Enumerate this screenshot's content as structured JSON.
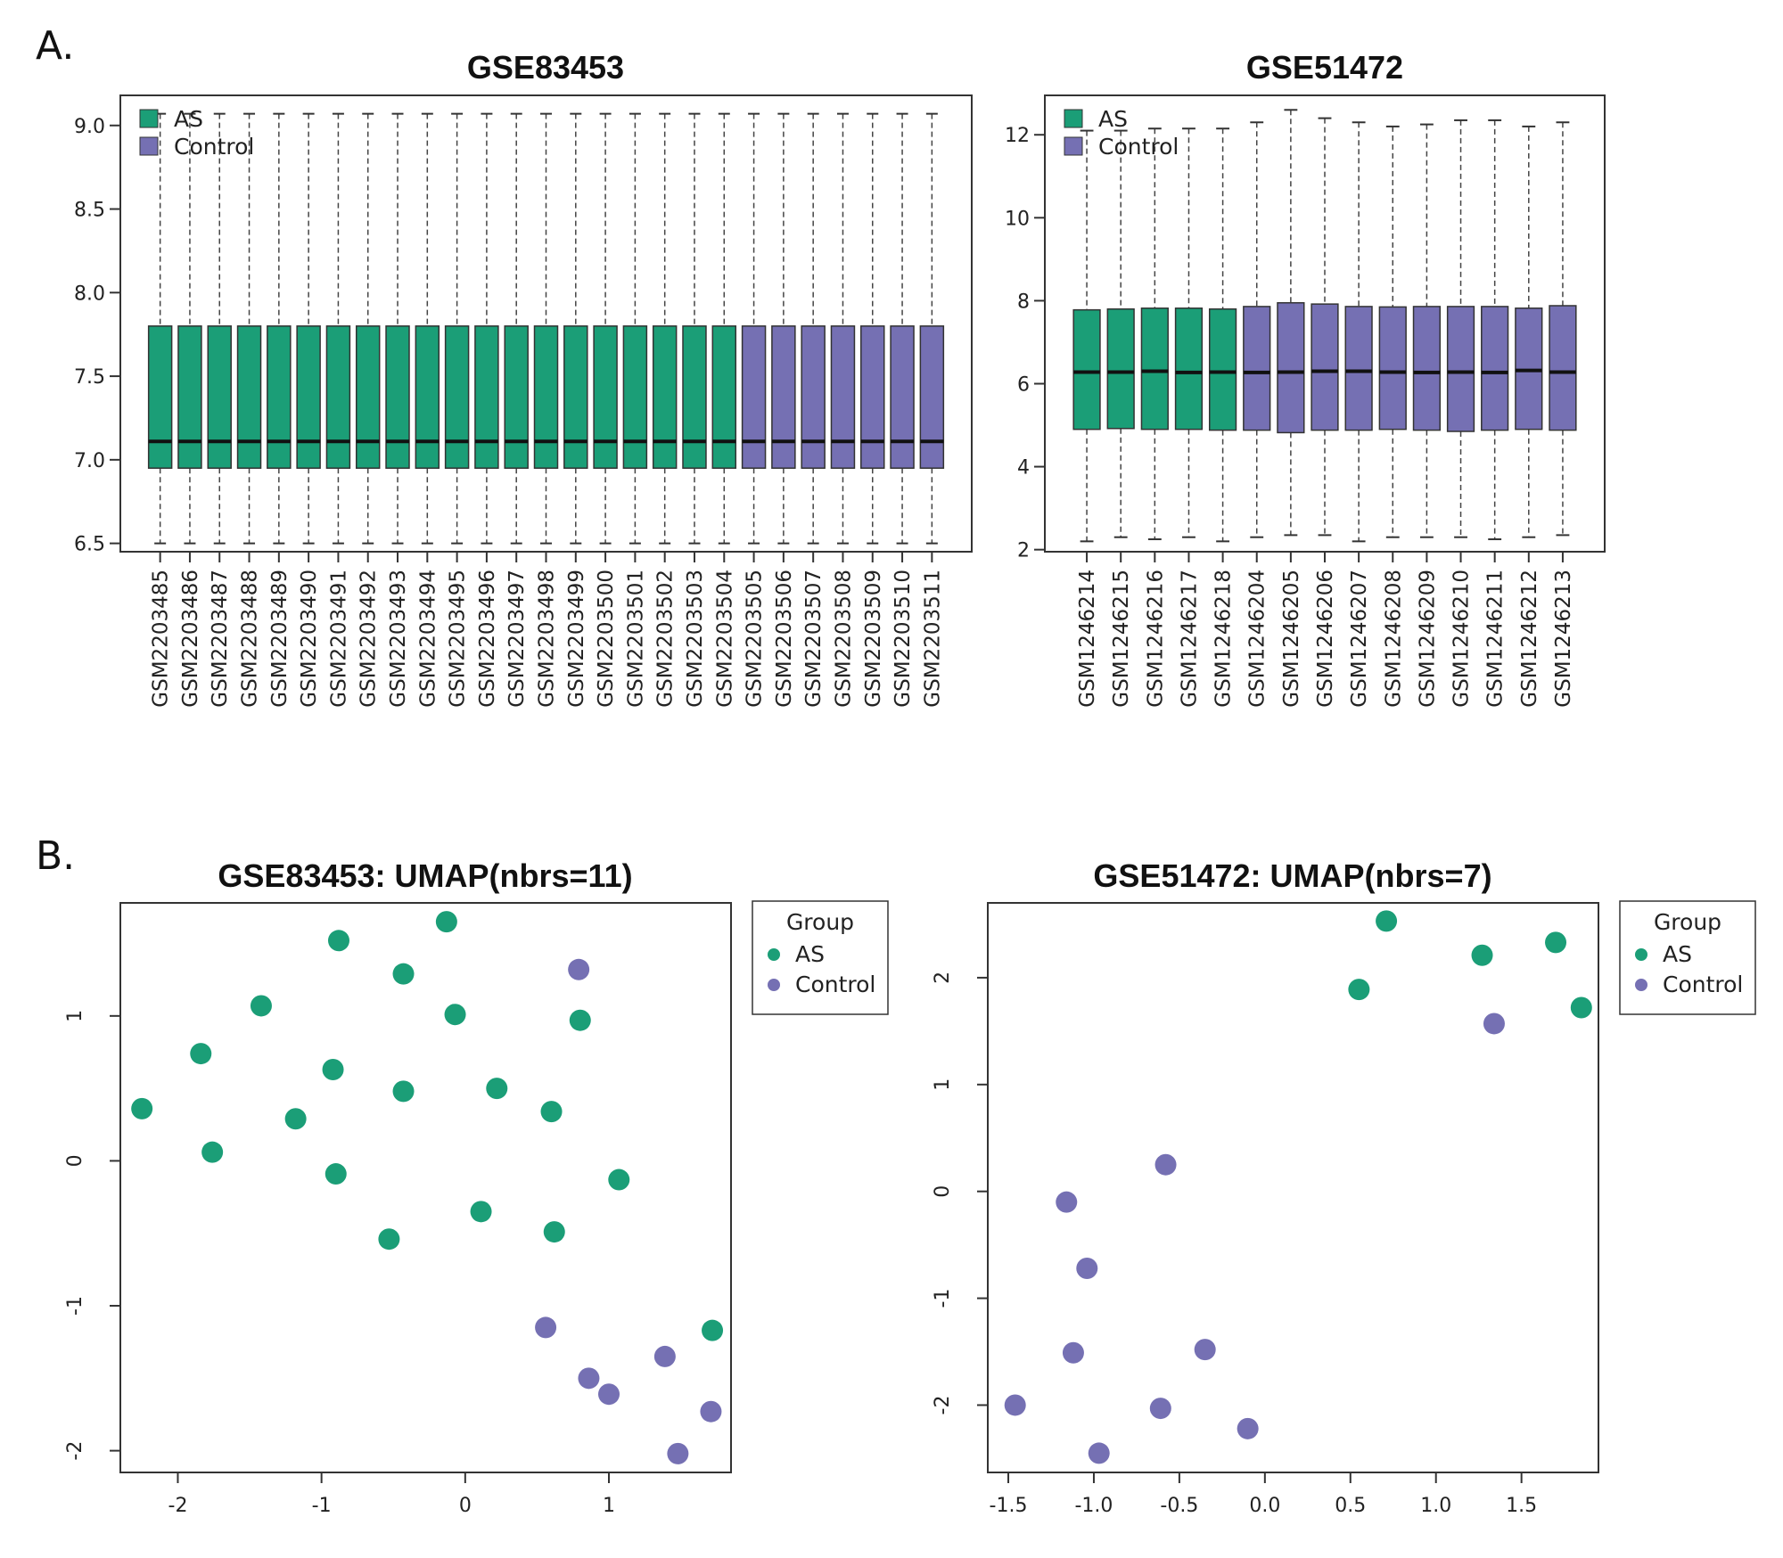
{
  "panel_labels": [
    "A.",
    "B."
  ],
  "colors": {
    "AS": "#1b9e77",
    "Control": "#7570b3"
  },
  "chart_data": [
    {
      "type": "boxplot",
      "title": "GSE83453",
      "legend": {
        "position": "top-left",
        "entries": [
          "AS",
          "Control"
        ]
      },
      "ylim": [
        6.45,
        9.18
      ],
      "yticks": [
        "6.5",
        "7.0",
        "7.5",
        "8.0",
        "8.5",
        "9.0"
      ],
      "samples": [
        "GSM2203485",
        "GSM2203486",
        "GSM2203487",
        "GSM2203488",
        "GSM2203489",
        "GSM2203490",
        "GSM2203491",
        "GSM2203492",
        "GSM2203493",
        "GSM2203494",
        "GSM2203495",
        "GSM2203496",
        "GSM2203497",
        "GSM2203498",
        "GSM2203499",
        "GSM2203500",
        "GSM2203501",
        "GSM2203502",
        "GSM2203503",
        "GSM2203504",
        "GSM2203505",
        "GSM2203506",
        "GSM2203507",
        "GSM2203508",
        "GSM2203509",
        "GSM2203510",
        "GSM2203511"
      ],
      "groups": [
        "AS",
        "AS",
        "AS",
        "AS",
        "AS",
        "AS",
        "AS",
        "AS",
        "AS",
        "AS",
        "AS",
        "AS",
        "AS",
        "AS",
        "AS",
        "AS",
        "AS",
        "AS",
        "AS",
        "AS",
        "Control",
        "Control",
        "Control",
        "Control",
        "Control",
        "Control",
        "Control"
      ],
      "stats": {
        "min": [
          6.5,
          6.5,
          6.5,
          6.5,
          6.5,
          6.5,
          6.5,
          6.5,
          6.5,
          6.5,
          6.5,
          6.5,
          6.5,
          6.5,
          6.5,
          6.5,
          6.5,
          6.5,
          6.5,
          6.5,
          6.5,
          6.5,
          6.5,
          6.5,
          6.5,
          6.5,
          6.5
        ],
        "q1": [
          6.95,
          6.95,
          6.95,
          6.95,
          6.95,
          6.95,
          6.95,
          6.95,
          6.95,
          6.95,
          6.95,
          6.95,
          6.95,
          6.95,
          6.95,
          6.95,
          6.95,
          6.95,
          6.95,
          6.95,
          6.95,
          6.95,
          6.95,
          6.95,
          6.95,
          6.95,
          6.95
        ],
        "median": [
          7.11,
          7.11,
          7.11,
          7.11,
          7.11,
          7.11,
          7.11,
          7.11,
          7.11,
          7.11,
          7.11,
          7.11,
          7.11,
          7.11,
          7.11,
          7.11,
          7.11,
          7.11,
          7.11,
          7.11,
          7.11,
          7.11,
          7.11,
          7.11,
          7.11,
          7.11,
          7.11
        ],
        "q3": [
          7.8,
          7.8,
          7.8,
          7.8,
          7.8,
          7.8,
          7.8,
          7.8,
          7.8,
          7.8,
          7.8,
          7.8,
          7.8,
          7.8,
          7.8,
          7.8,
          7.8,
          7.8,
          7.8,
          7.8,
          7.8,
          7.8,
          7.8,
          7.8,
          7.8,
          7.8,
          7.8
        ],
        "max": [
          9.07,
          9.07,
          9.07,
          9.07,
          9.07,
          9.07,
          9.07,
          9.07,
          9.07,
          9.07,
          9.07,
          9.07,
          9.07,
          9.07,
          9.07,
          9.07,
          9.07,
          9.07,
          9.07,
          9.07,
          9.07,
          9.07,
          9.07,
          9.07,
          9.07,
          9.07,
          9.07
        ]
      }
    },
    {
      "type": "boxplot",
      "title": "GSE51472",
      "legend": {
        "position": "top-left",
        "entries": [
          "AS",
          "Control"
        ]
      },
      "ylim": [
        1.95,
        12.95
      ],
      "yticks": [
        "2",
        "4",
        "6",
        "8",
        "10",
        "12"
      ],
      "samples": [
        "GSM1246214",
        "GSM1246215",
        "GSM1246216",
        "GSM1246217",
        "GSM1246218",
        "GSM1246204",
        "GSM1246205",
        "GSM1246206",
        "GSM1246207",
        "GSM1246208",
        "GSM1246209",
        "GSM1246210",
        "GSM1246211",
        "GSM1246212",
        "GSM1246213"
      ],
      "groups": [
        "AS",
        "AS",
        "AS",
        "AS",
        "AS",
        "Control",
        "Control",
        "Control",
        "Control",
        "Control",
        "Control",
        "Control",
        "Control",
        "Control",
        "Control"
      ],
      "stats": {
        "min": [
          2.2,
          2.3,
          2.25,
          2.3,
          2.2,
          2.3,
          2.35,
          2.35,
          2.2,
          2.3,
          2.3,
          2.3,
          2.25,
          2.3,
          2.35
        ],
        "q1": [
          4.9,
          4.92,
          4.9,
          4.9,
          4.88,
          4.88,
          4.82,
          4.88,
          4.88,
          4.9,
          4.88,
          4.85,
          4.88,
          4.9,
          4.88
        ],
        "median": [
          6.28,
          6.28,
          6.3,
          6.27,
          6.28,
          6.27,
          6.28,
          6.3,
          6.3,
          6.28,
          6.27,
          6.28,
          6.27,
          6.32,
          6.28
        ],
        "q3": [
          7.78,
          7.8,
          7.82,
          7.82,
          7.8,
          7.86,
          7.95,
          7.92,
          7.86,
          7.85,
          7.86,
          7.86,
          7.86,
          7.82,
          7.88
        ],
        "max": [
          12.1,
          12.1,
          12.15,
          12.15,
          12.15,
          12.3,
          12.6,
          12.4,
          12.3,
          12.2,
          12.25,
          12.35,
          12.35,
          12.2,
          12.3
        ]
      }
    },
    {
      "type": "scatter",
      "title": "GSE83453: UMAP(nbrs=11)",
      "legend": {
        "position": "right",
        "title": "Group",
        "entries": [
          "AS",
          "Control"
        ]
      },
      "xlim": [
        -2.4,
        1.85
      ],
      "ylim": [
        -2.15,
        1.78
      ],
      "xticks": [
        "-2",
        "-1",
        "0",
        "1"
      ],
      "yticks": [
        "-2",
        "-1",
        "0",
        "1"
      ],
      "points": [
        {
          "x": -0.13,
          "y": 1.65,
          "g": "AS"
        },
        {
          "x": -0.88,
          "y": 1.52,
          "g": "AS"
        },
        {
          "x": -0.43,
          "y": 1.29,
          "g": "AS"
        },
        {
          "x": -1.42,
          "y": 1.07,
          "g": "AS"
        },
        {
          "x": -0.07,
          "y": 1.01,
          "g": "AS"
        },
        {
          "x": 0.8,
          "y": 0.97,
          "g": "AS"
        },
        {
          "x": -1.84,
          "y": 0.74,
          "g": "AS"
        },
        {
          "x": -0.92,
          "y": 0.63,
          "g": "AS"
        },
        {
          "x": -0.43,
          "y": 0.48,
          "g": "AS"
        },
        {
          "x": 0.22,
          "y": 0.5,
          "g": "AS"
        },
        {
          "x": 0.6,
          "y": 0.34,
          "g": "AS"
        },
        {
          "x": -2.25,
          "y": 0.36,
          "g": "AS"
        },
        {
          "x": -1.18,
          "y": 0.29,
          "g": "AS"
        },
        {
          "x": -1.76,
          "y": 0.06,
          "g": "AS"
        },
        {
          "x": -0.9,
          "y": -0.09,
          "g": "AS"
        },
        {
          "x": 1.07,
          "y": -0.13,
          "g": "AS"
        },
        {
          "x": 0.11,
          "y": -0.35,
          "g": "AS"
        },
        {
          "x": -0.53,
          "y": -0.54,
          "g": "AS"
        },
        {
          "x": 0.62,
          "y": -0.49,
          "g": "AS"
        },
        {
          "x": 1.72,
          "y": -1.17,
          "g": "AS"
        },
        {
          "x": 0.79,
          "y": 1.32,
          "g": "Control"
        },
        {
          "x": 0.56,
          "y": -1.15,
          "g": "Control"
        },
        {
          "x": 1.39,
          "y": -1.35,
          "g": "Control"
        },
        {
          "x": 0.86,
          "y": -1.5,
          "g": "Control"
        },
        {
          "x": 1.0,
          "y": -1.61,
          "g": "Control"
        },
        {
          "x": 1.71,
          "y": -1.73,
          "g": "Control"
        },
        {
          "x": 1.48,
          "y": -2.02,
          "g": "Control"
        }
      ]
    },
    {
      "type": "scatter",
      "title": "GSE51472: UMAP(nbrs=7)",
      "legend": {
        "position": "right",
        "title": "Group",
        "entries": [
          "AS",
          "Control"
        ]
      },
      "xlim": [
        -1.62,
        1.95
      ],
      "ylim": [
        -2.63,
        2.7
      ],
      "xticks": [
        "-1.5",
        "-1.0",
        "-0.5",
        "0.0",
        "0.5",
        "1.0",
        "1.5"
      ],
      "yticks": [
        "-2",
        "-1",
        "0",
        "1",
        "2"
      ],
      "points": [
        {
          "x": 0.71,
          "y": 2.53,
          "g": "AS"
        },
        {
          "x": 1.27,
          "y": 2.21,
          "g": "AS"
        },
        {
          "x": 1.7,
          "y": 2.33,
          "g": "AS"
        },
        {
          "x": 0.55,
          "y": 1.89,
          "g": "AS"
        },
        {
          "x": 1.85,
          "y": 1.72,
          "g": "AS"
        },
        {
          "x": 1.34,
          "y": 1.57,
          "g": "Control"
        },
        {
          "x": -0.58,
          "y": 0.25,
          "g": "Control"
        },
        {
          "x": -1.16,
          "y": -0.1,
          "g": "Control"
        },
        {
          "x": -1.04,
          "y": -0.72,
          "g": "Control"
        },
        {
          "x": -1.12,
          "y": -1.51,
          "g": "Control"
        },
        {
          "x": -0.35,
          "y": -1.48,
          "g": "Control"
        },
        {
          "x": -1.46,
          "y": -2.0,
          "g": "Control"
        },
        {
          "x": -0.61,
          "y": -2.03,
          "g": "Control"
        },
        {
          "x": -0.1,
          "y": -2.22,
          "g": "Control"
        },
        {
          "x": -0.97,
          "y": -2.45,
          "g": "Control"
        }
      ]
    }
  ]
}
